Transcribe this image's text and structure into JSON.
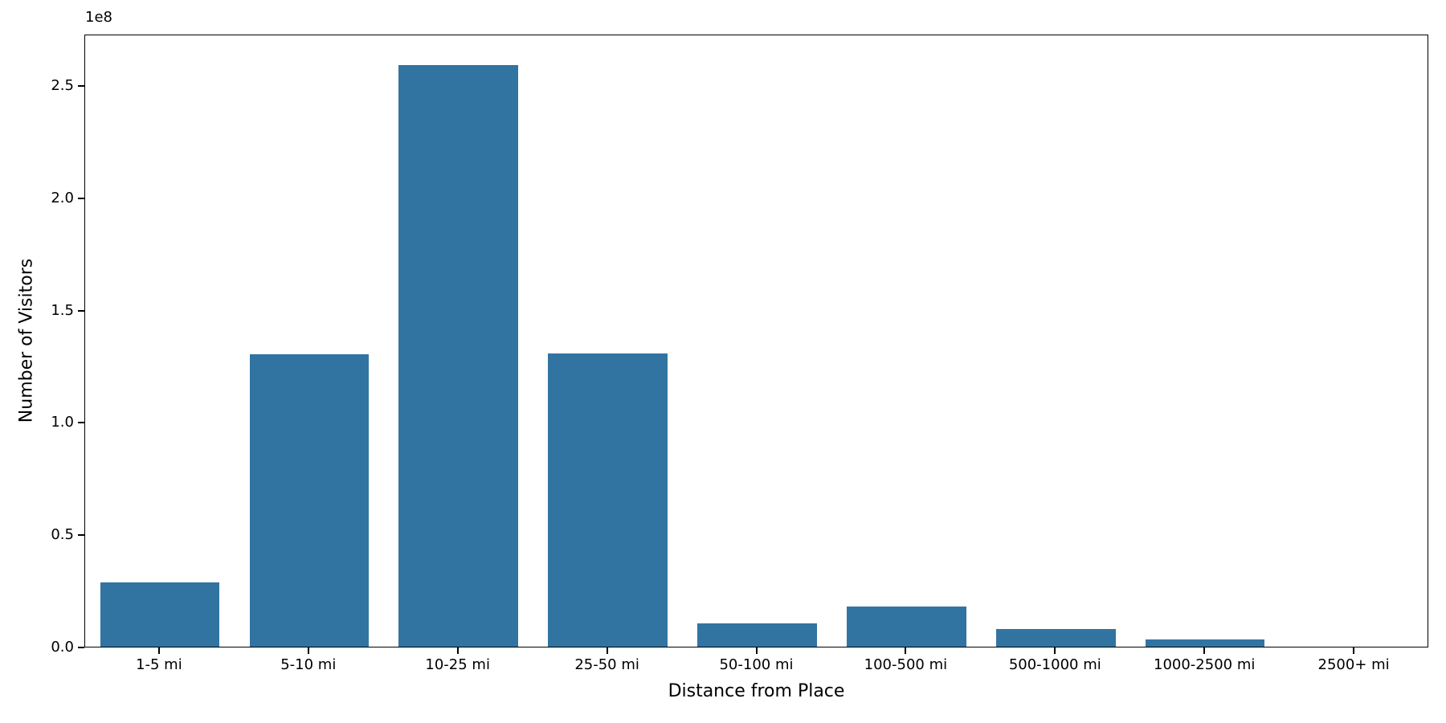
{
  "chart_data": {
    "type": "bar",
    "title": "",
    "xlabel": "Distance from Place",
    "ylabel": "Number of Visitors",
    "offset_text": "1e8",
    "categories": [
      "1-5 mi",
      "5-10 mi",
      "10-25 mi",
      "25-50 mi",
      "50-100 mi",
      "100-500 mi",
      "500-1000 mi",
      "1000-2500 mi",
      "2500+ mi"
    ],
    "values": [
      28600000,
      130300000,
      259000000,
      130700000,
      10400000,
      18000000,
      7800000,
      3100000,
      0
    ],
    "ylim": [
      0,
      272900000
    ],
    "yticks": [
      0,
      50000000,
      100000000,
      150000000,
      200000000,
      250000000
    ],
    "ytick_labels": [
      "0.0",
      "0.5",
      "1.0",
      "1.5",
      "2.0",
      "2.5"
    ],
    "bar_color": "#3274a1",
    "spine_color": "#000000",
    "background_color": "#ffffff",
    "bar_width_fraction": 0.8,
    "grid": false,
    "legend": null
  }
}
